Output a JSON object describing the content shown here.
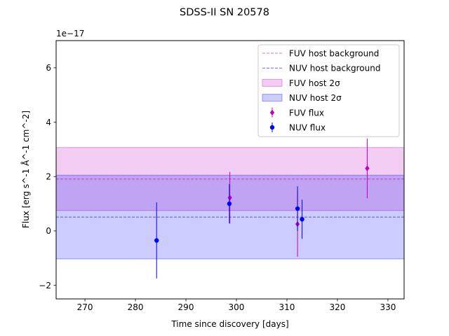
{
  "chart_data": {
    "type": "scatter",
    "title": "SDSS-II SN 20578",
    "xlabel": "Time since discovery [days]",
    "ylabel": "Flux [erg s^-1 Å^-1 cm^-2]",
    "offset_label": "1e−17",
    "xlim": [
      264.3,
      333.2
    ],
    "ylim": [
      -2.5,
      7.0
    ],
    "x_ticks": [
      270,
      280,
      290,
      300,
      310,
      320,
      330
    ],
    "y_ticks": [
      -2,
      0,
      2,
      4,
      6
    ],
    "y_tick_labels": [
      "−2",
      "0",
      "2",
      "4",
      "6"
    ],
    "grid": false,
    "legend_position": "upper right",
    "bands": [
      {
        "name": "FUV host 2σ",
        "y0": 0.75,
        "y1": 3.07,
        "color": "#c000c0",
        "opacity": 0.2
      },
      {
        "name": "NUV host 2σ",
        "y0": -1.03,
        "y1": 2.05,
        "color": "#0000ff",
        "opacity": 0.2
      }
    ],
    "hlines": [
      {
        "name": "FUV host background",
        "y": 1.91,
        "color": "#c000c0"
      },
      {
        "name": "NUV host background",
        "y": 0.51,
        "color": "#0000ff"
      }
    ],
    "series": [
      {
        "name": "FUV flux",
        "marker": "diamond",
        "color": "#c000c0",
        "points": [
          {
            "x": 298.7,
            "y": 1.22,
            "err": 0.95
          },
          {
            "x": 312.1,
            "y": 0.25,
            "err": 1.2
          },
          {
            "x": 325.9,
            "y": 2.3,
            "err": 1.1
          }
        ]
      },
      {
        "name": "NUV flux",
        "marker": "circle",
        "color": "#0000ff",
        "points": [
          {
            "x": 284.2,
            "y": -0.35,
            "err": 1.4
          },
          {
            "x": 298.6,
            "y": 1.0,
            "err": 0.72
          },
          {
            "x": 312.1,
            "y": 0.82,
            "err": 0.82
          },
          {
            "x": 313.0,
            "y": 0.43,
            "err": 0.72
          }
        ]
      }
    ],
    "legend": [
      {
        "label": "FUV host background",
        "kind": "dashline",
        "color": "#c000c0"
      },
      {
        "label": "NUV host background",
        "kind": "dashline",
        "color": "#0000ff"
      },
      {
        "label": "FUV host 2σ",
        "kind": "patch",
        "color": "#c000c0"
      },
      {
        "label": "NUV host 2σ",
        "kind": "patch",
        "color": "#0000ff"
      },
      {
        "label": "FUV flux",
        "kind": "diamond",
        "color": "#c000c0"
      },
      {
        "label": "NUV flux",
        "kind": "circle",
        "color": "#0000ff"
      }
    ]
  }
}
